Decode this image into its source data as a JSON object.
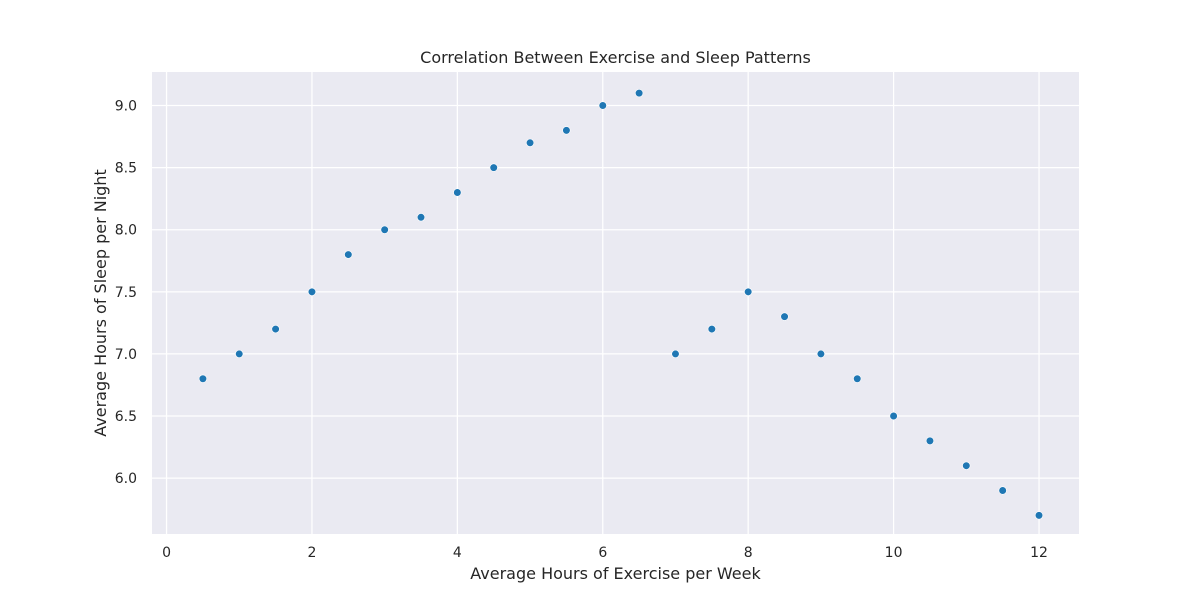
{
  "chart_data": {
    "type": "scatter",
    "title": "Correlation Between Exercise and Sleep Patterns",
    "xlabel": "Average Hours of Exercise per Week",
    "ylabel": "Average Hours of Sleep per Night",
    "xlim": [
      -0.2,
      12.55
    ],
    "ylim": [
      5.55,
      9.27
    ],
    "xticks": [
      0,
      2,
      4,
      6,
      8,
      10,
      12
    ],
    "xtick_labels": [
      "0",
      "2",
      "4",
      "6",
      "8",
      "10",
      "12"
    ],
    "yticks": [
      6.0,
      6.5,
      7.0,
      7.5,
      8.0,
      8.5,
      9.0
    ],
    "ytick_labels": [
      "6.0",
      "6.5",
      "7.0",
      "7.5",
      "8.0",
      "8.5",
      "9.0"
    ],
    "grid": true,
    "marker_color": "#1f77b4",
    "background_color": "#eaeaf2",
    "x": [
      0.5,
      1.0,
      1.5,
      2.0,
      2.5,
      3.0,
      3.5,
      4.0,
      4.5,
      5.0,
      5.5,
      6.0,
      6.5,
      7.0,
      7.5,
      8.0,
      8.5,
      9.0,
      9.5,
      10.0,
      10.5,
      11.0,
      11.5,
      12.0
    ],
    "y": [
      6.8,
      7.0,
      7.2,
      7.5,
      7.8,
      8.0,
      8.1,
      8.3,
      8.5,
      8.7,
      8.8,
      9.0,
      9.1,
      7.0,
      7.2,
      7.5,
      7.3,
      7.0,
      6.8,
      6.5,
      6.3,
      6.1,
      5.9,
      5.7
    ]
  }
}
